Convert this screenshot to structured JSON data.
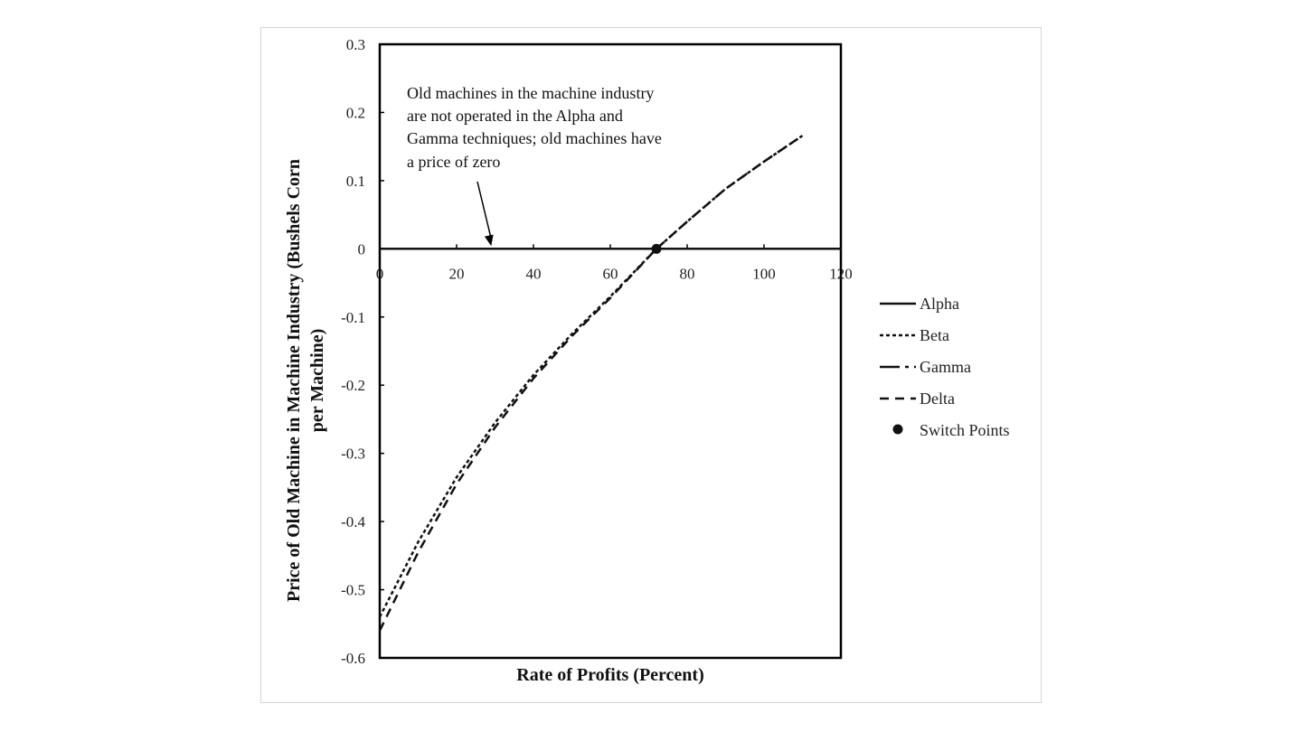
{
  "chart_data": {
    "type": "line",
    "xlabel": "Rate of Profits (Percent)",
    "ylabel": "Price of Old Machine in Machine Industry (Bushels Corn per Machine)",
    "ylabel_lines": [
      "Price of Old Machine in Machine Industry (Bushels Corn",
      "per Machine)"
    ],
    "xlim": [
      0,
      120
    ],
    "ylim": [
      -0.6,
      0.3
    ],
    "xticks": [
      "0",
      "20",
      "40",
      "60",
      "80",
      "100",
      "120"
    ],
    "yticks": [
      "0.3",
      "0.2",
      "0.1",
      "0",
      "-0.1",
      "-0.2",
      "-0.3",
      "-0.4",
      "-0.5",
      "-0.6"
    ],
    "grid": false,
    "legend_position": "right",
    "series": [
      {
        "name": "Alpha",
        "style": "solid",
        "x": [
          0,
          120
        ],
        "y": [
          0,
          0
        ]
      },
      {
        "name": "Beta",
        "style": "dot",
        "x": [
          0,
          10,
          20,
          30,
          40,
          50,
          60,
          72,
          80,
          90,
          100,
          110
        ],
        "y": [
          -0.54,
          -0.43,
          -0.335,
          -0.255,
          -0.185,
          -0.125,
          -0.07,
          0.0,
          0.04,
          0.088,
          0.128,
          0.166
        ]
      },
      {
        "name": "Gamma",
        "style": "longdash",
        "x": [
          0,
          120
        ],
        "y": [
          0,
          0
        ]
      },
      {
        "name": "Delta",
        "style": "dash",
        "x": [
          0,
          10,
          20,
          30,
          40,
          50,
          60,
          72,
          80,
          90,
          100,
          110
        ],
        "y": [
          -0.56,
          -0.445,
          -0.345,
          -0.262,
          -0.19,
          -0.128,
          -0.072,
          0.0,
          0.04,
          0.088,
          0.128,
          0.166
        ]
      }
    ],
    "switch_points": {
      "name": "Switch Points",
      "x": [
        72
      ],
      "y": [
        0
      ]
    },
    "annotation": {
      "lines": [
        "Old machines in the machine industry",
        "are not operated in the Alpha and",
        "Gamma techniques; old machines have",
        "a price of zero"
      ],
      "arrow_to": {
        "x": 29,
        "y": 0
      }
    }
  }
}
